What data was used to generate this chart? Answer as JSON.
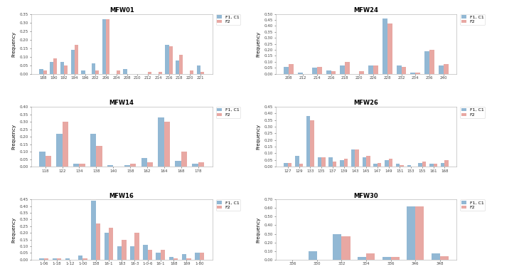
{
  "charts": [
    {
      "title": "MFW01",
      "row": 0,
      "col": 0,
      "ylim": [
        0,
        0.35
      ],
      "yticks": [
        0,
        0.05,
        0.1,
        0.15,
        0.2,
        0.25,
        0.3,
        0.35
      ],
      "categories": [
        "188",
        "190",
        "192",
        "194",
        "196",
        "202",
        "206",
        "204",
        "208",
        "210",
        "212",
        "214",
        "216",
        "218",
        "220",
        "221"
      ],
      "F1C1": [
        0.03,
        0.07,
        0.07,
        0.14,
        0.02,
        0.06,
        0.32,
        0.0,
        0.03,
        0.0,
        0.0,
        0.0,
        0.17,
        0.08,
        0.0,
        0.05
      ],
      "F2": [
        0.02,
        0.09,
        0.05,
        0.17,
        0.0,
        0.02,
        0.32,
        0.02,
        0.0,
        0.0,
        0.01,
        0.01,
        0.16,
        0.11,
        0.02,
        0.01
      ]
    },
    {
      "title": "MFW24",
      "row": 0,
      "col": 1,
      "ylim": [
        0,
        0.5
      ],
      "yticks": [
        0,
        0.05,
        0.1,
        0.15,
        0.2,
        0.25,
        0.3,
        0.35,
        0.4,
        0.45,
        0.5
      ],
      "categories": [
        "208",
        "212",
        "214",
        "216",
        "218",
        "220",
        "226",
        "228",
        "232",
        "234",
        "236",
        "240"
      ],
      "F1C1": [
        0.06,
        0.01,
        0.05,
        0.03,
        0.07,
        0.0,
        0.07,
        0.46,
        0.07,
        0.01,
        0.19,
        0.07
      ],
      "F2": [
        0.08,
        0.0,
        0.06,
        0.02,
        0.1,
        0.02,
        0.07,
        0.42,
        0.06,
        0.01,
        0.2,
        0.08
      ]
    },
    {
      "title": "MFW14",
      "row": 1,
      "col": 0,
      "ylim": [
        0,
        0.4
      ],
      "yticks": [
        0,
        0.05,
        0.1,
        0.15,
        0.2,
        0.25,
        0.3,
        0.35,
        0.4
      ],
      "categories": [
        "118",
        "122",
        "134",
        "138",
        "140",
        "158",
        "162",
        "164",
        "168",
        "178"
      ],
      "F1C1": [
        0.1,
        0.22,
        0.02,
        0.22,
        0.01,
        0.01,
        0.06,
        0.33,
        0.04,
        0.02
      ],
      "F2": [
        0.07,
        0.3,
        0.02,
        0.14,
        0.0,
        0.02,
        0.03,
        0.3,
        0.1,
        0.03
      ]
    },
    {
      "title": "MFW26",
      "row": 1,
      "col": 1,
      "ylim": [
        0,
        0.45
      ],
      "yticks": [
        0,
        0.05,
        0.1,
        0.15,
        0.2,
        0.25,
        0.3,
        0.35,
        0.4,
        0.45
      ],
      "categories": [
        "127",
        "129",
        "133",
        "135",
        "137",
        "139",
        "143",
        "145",
        "147",
        "149",
        "151",
        "153",
        "155",
        "161",
        "168"
      ],
      "F1C1": [
        0.03,
        0.08,
        0.38,
        0.07,
        0.07,
        0.05,
        0.13,
        0.07,
        0.02,
        0.05,
        0.02,
        0.01,
        0.03,
        0.02,
        0.03
      ],
      "F2": [
        0.03,
        0.02,
        0.35,
        0.07,
        0.04,
        0.06,
        0.13,
        0.08,
        0.03,
        0.06,
        0.01,
        0.0,
        0.04,
        0.02,
        0.05
      ]
    },
    {
      "title": "MFW16",
      "row": 2,
      "col": 0,
      "ylim": [
        0,
        0.45
      ],
      "yticks": [
        0,
        0.05,
        0.1,
        0.15,
        0.2,
        0.25,
        0.3,
        0.35,
        0.4,
        0.45
      ],
      "categories": [
        "1-06",
        "1-18",
        "1-12",
        "1-00",
        "158",
        "16-1",
        "163",
        "16-3",
        "1-0-6",
        "16-1",
        "168",
        "169",
        "1-80"
      ],
      "F1C1": [
        0.01,
        0.01,
        0.01,
        0.03,
        0.44,
        0.2,
        0.1,
        0.1,
        0.11,
        0.05,
        0.02,
        0.04,
        0.05
      ],
      "F2": [
        0.01,
        0.01,
        0.0,
        0.01,
        0.27,
        0.24,
        0.15,
        0.2,
        0.07,
        0.07,
        0.01,
        0.01,
        0.05
      ]
    },
    {
      "title": "MFW30",
      "row": 2,
      "col": 1,
      "ylim": [
        0,
        0.7
      ],
      "yticks": [
        0,
        0.1,
        0.2,
        0.3,
        0.4,
        0.5,
        0.6,
        0.7
      ],
      "categories": [
        "336",
        "330",
        "332",
        "334",
        "336",
        "346",
        "348"
      ],
      "F1C1": [
        0.0,
        0.1,
        0.3,
        0.03,
        0.03,
        0.62,
        0.07
      ],
      "F2": [
        0.0,
        0.0,
        0.27,
        0.07,
        0.03,
        0.62,
        0.04
      ]
    }
  ],
  "color_F1C1": "#92b8d4",
  "color_F2": "#e8a8a3",
  "bar_width": 0.35,
  "ylabel": "Frequency",
  "legend_F1C1": "F1, C1",
  "legend_F2": "F2",
  "title_fontsize": 6,
  "tick_fontsize": 4,
  "label_fontsize": 5,
  "legend_fontsize": 4.5
}
